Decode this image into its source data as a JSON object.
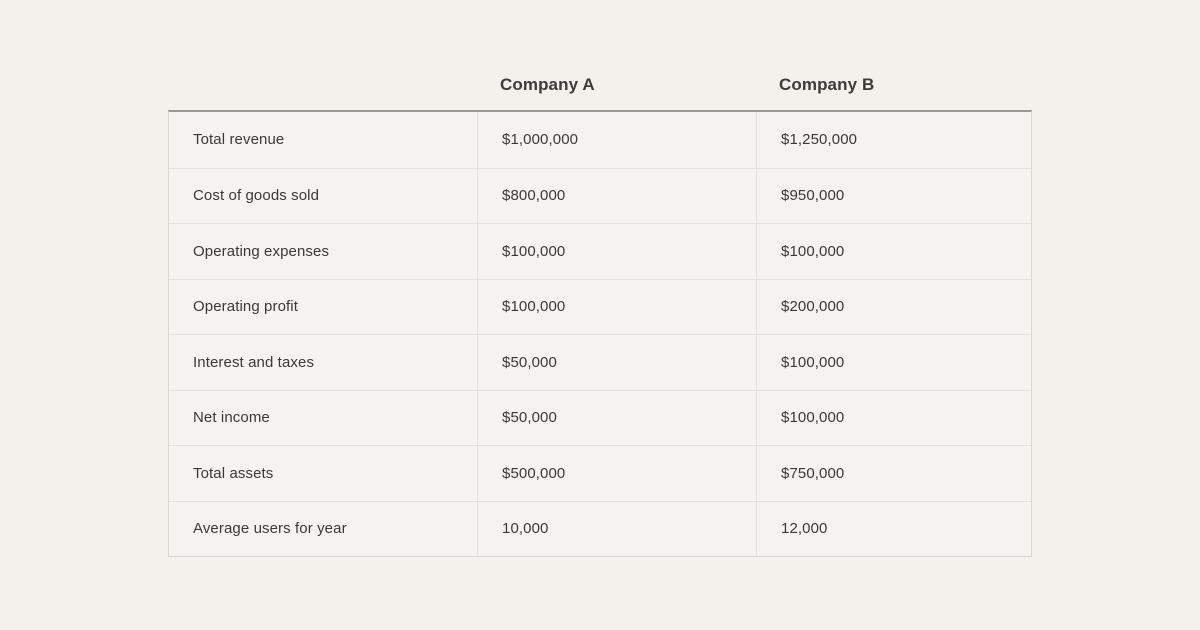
{
  "colors": {
    "page_bg": "#f2f1ec",
    "cell_bg": "#f4f3ef",
    "outer_border": "#d9d7d2",
    "inner_border": "#e3e1dc",
    "top_border": "#9a9790",
    "header_text": "#3c3b37",
    "cell_text": "#3a3936"
  },
  "chart_data": {
    "type": "table",
    "title": "",
    "categories": [
      "Total revenue",
      "Cost of goods sold",
      "Operating expenses",
      "Operating profit",
      "Interest and taxes",
      "Net income",
      "Total assets",
      "Average users for year"
    ],
    "series": [
      {
        "name": "Company A",
        "values": [
          "$1,000,000",
          "$800,000",
          "$100,000",
          "$100,000",
          "$50,000",
          "$50,000",
          "$500,000",
          "10,000"
        ]
      },
      {
        "name": "Company B",
        "values": [
          "$1,250,000",
          "$950,000",
          "$100,000",
          "$200,000",
          "$100,000",
          "$100,000",
          "$750,000",
          "12,000"
        ]
      }
    ],
    "layout_hints": {
      "grid": "light horizontal and vertical dividers",
      "header_position": "above table, bold",
      "first_column": "row labels"
    }
  }
}
